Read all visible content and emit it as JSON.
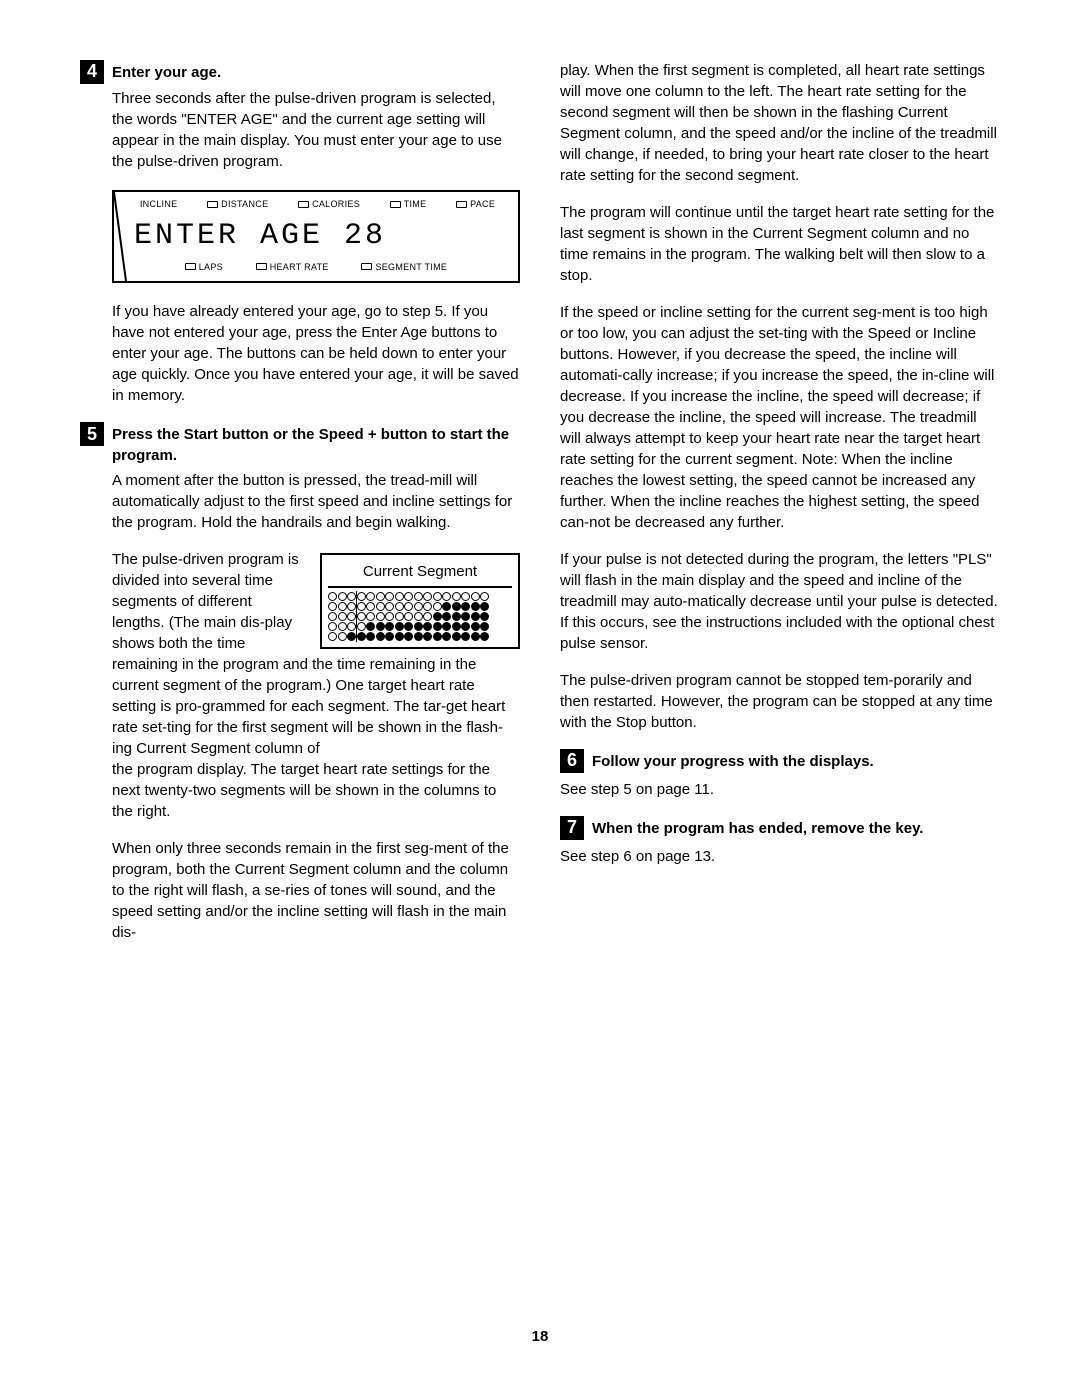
{
  "page_number": "18",
  "steps": {
    "s4": {
      "num": "4",
      "title": "Enter your age.",
      "p1": "Three seconds after the pulse-driven program is selected, the words \"ENTER AGE\" and the current age setting will appear in the main display. You must enter your age to use the pulse-driven program.",
      "p2": "If you have already entered your age, go to step 5. If you have not entered your age, press the Enter Age buttons to enter your age. The buttons can be held down to enter your age quickly. Once you have entered your age, it will be saved in memory."
    },
    "s5": {
      "num": "5",
      "title": "Press the Start button or the Speed + button to start the program.",
      "p1": "A moment after the button is pressed, the tread-mill will automatically adjust to the first speed and incline settings for the program. Hold the handrails and begin walking.",
      "p2a": "The pulse-driven program is divided into several time segments of different lengths. (The main dis-play shows both the time remaining in the program and the time remaining in the current segment of the program.) One target heart rate setting is pro-grammed for each segment. The tar-get heart rate set-ting for the first segment will be shown in the flash-ing Current Segment column of ",
      "p2b": "the program display. The target heart rate settings for the next twenty-two segments will be shown in the columns to the right.",
      "p3": "When only three seconds remain in the first seg-ment of the program, both the Current Segment column and the column to the right will flash, a se-ries of tones will sound, and the speed setting and/or the incline setting will flash in the main dis-",
      "r1": "play. When the first segment is completed, all heart rate settings will move one column to the left. The heart rate setting for the second segment will then be shown in the flashing Current Segment column, and the speed and/or the incline of the treadmill will change, if needed, to bring your heart rate closer to the heart rate setting for the second segment.",
      "r2": "The program will continue until the target heart rate setting for the last segment is shown in the Current Segment column and no time remains in the program. The walking belt will then slow to a stop.",
      "r3": "If the speed or incline setting for the current seg-ment is too high or too low, you can adjust the set-ting with the Speed or Incline buttons. However, if you decrease the speed, the incline will automati-cally increase; if you increase the speed, the in-cline will decrease. If you increase the incline, the speed will decrease; if you decrease the incline, the speed will increase. The treadmill will always attempt to keep your heart rate near the target heart rate setting for the current segment. Note: When the incline reaches the lowest setting, the speed cannot be increased any further. When the incline reaches the highest setting, the speed can-not be decreased any further.",
      "r4": "If your pulse is not detected during the program, the letters \"PLS\" will flash in the main display and the speed and incline of the treadmill may auto-matically decrease until your pulse is detected. If this occurs, see the instructions included with the optional chest pulse sensor.",
      "r5": "The pulse-driven program cannot be stopped tem-porarily and then restarted. However, the program can be stopped at any time with the Stop button."
    },
    "s6": {
      "num": "6",
      "title": "Follow your progress with the displays.",
      "p1": "See step 5 on page 11."
    },
    "s7": {
      "num": "7",
      "title": "When the program has ended, remove the key.",
      "p1": "See step 6 on page 13."
    }
  },
  "lcd": {
    "top": {
      "incline": "INCLINE",
      "distance": "DISTANCE",
      "calories": "CALORIES",
      "time": "TIME",
      "pace": "PACE"
    },
    "main": "ENTER AGE 28",
    "bottom": {
      "laps": "LAPS",
      "heartrate": "HEART RATE",
      "segtime": "SEGMENT TIME"
    }
  },
  "segment": {
    "title": "Current Segment",
    "rows": [
      [
        0,
        0,
        0,
        0,
        0,
        0,
        0,
        0,
        0,
        0,
        0,
        0,
        0,
        0,
        0,
        0,
        0
      ],
      [
        0,
        0,
        0,
        0,
        0,
        0,
        0,
        0,
        0,
        0,
        0,
        0,
        1,
        1,
        1,
        1,
        1
      ],
      [
        0,
        0,
        0,
        0,
        0,
        0,
        0,
        0,
        0,
        0,
        0,
        1,
        1,
        1,
        1,
        1,
        1
      ],
      [
        0,
        0,
        0,
        0,
        1,
        1,
        1,
        1,
        1,
        1,
        1,
        1,
        1,
        1,
        1,
        1,
        1
      ],
      [
        0,
        0,
        1,
        1,
        1,
        1,
        1,
        1,
        1,
        1,
        1,
        1,
        1,
        1,
        1,
        1,
        1
      ]
    ],
    "sep_col": 2
  }
}
